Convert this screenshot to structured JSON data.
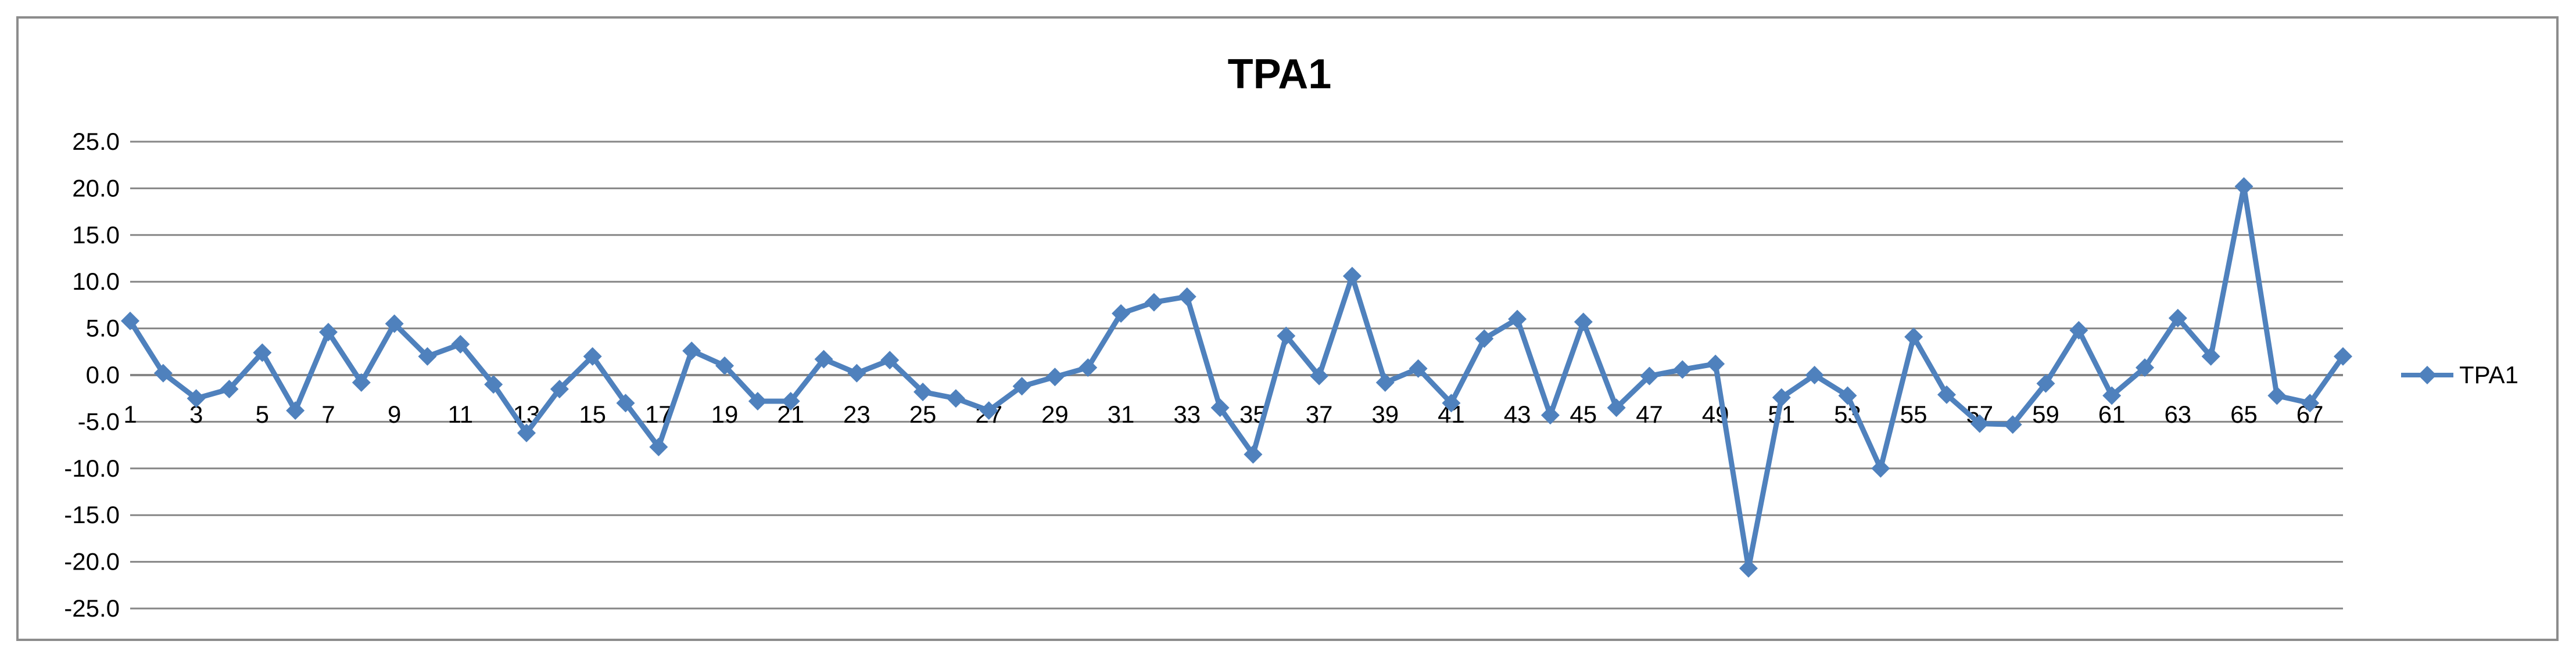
{
  "chart_data": {
    "type": "line",
    "title": "TPA1",
    "xlabel": "",
    "ylabel": "",
    "ylim": [
      -25,
      25
    ],
    "yticks": [
      "25.0",
      "20.0",
      "15.0",
      "10.0",
      "5.0",
      "0.0",
      "-5.0",
      "-10.0",
      "-15.0",
      "-20.0",
      "-25.0"
    ],
    "x": [
      1,
      2,
      3,
      4,
      5,
      6,
      7,
      8,
      9,
      10,
      11,
      12,
      13,
      14,
      15,
      16,
      17,
      18,
      19,
      20,
      21,
      22,
      23,
      24,
      25,
      26,
      27,
      28,
      29,
      30,
      31,
      32,
      33,
      34,
      35,
      36,
      37,
      38,
      39,
      40,
      41,
      42,
      43,
      44,
      45,
      46,
      47,
      48,
      49,
      50,
      51,
      52,
      53,
      54,
      55,
      56,
      57,
      58,
      59,
      60,
      61,
      62,
      63,
      64,
      65,
      66,
      67,
      68
    ],
    "xtick_labels": [
      "1",
      "3",
      "5",
      "7",
      "9",
      "11",
      "13",
      "15",
      "17",
      "19",
      "21",
      "23",
      "25",
      "27",
      "29",
      "31",
      "33",
      "35",
      "37",
      "39",
      "41",
      "43",
      "45",
      "47",
      "49",
      "51",
      "53",
      "55",
      "57",
      "59",
      "61",
      "63",
      "65",
      "67"
    ],
    "grid": true,
    "legend_position": "right",
    "series": [
      {
        "name": "TPA1",
        "color": "#4f81bd",
        "marker": "diamond",
        "values": [
          5.8,
          0.2,
          -2.5,
          -1.5,
          2.4,
          -3.8,
          4.6,
          -0.8,
          5.5,
          2.0,
          3.3,
          -1.0,
          -6.2,
          -1.5,
          2.0,
          -3.0,
          -7.7,
          2.6,
          1.0,
          -2.8,
          -2.8,
          1.7,
          0.2,
          1.6,
          -1.8,
          -2.5,
          -3.8,
          -1.2,
          -0.2,
          0.8,
          6.6,
          7.8,
          8.4,
          -3.5,
          -8.5,
          4.2,
          -0.1,
          10.6,
          -0.8,
          0.7,
          -3.0,
          3.9,
          6.0,
          -4.3,
          5.7,
          -3.5,
          -0.1,
          0.6,
          1.2,
          -20.7,
          -2.4,
          0.0,
          -2.2,
          -10.0,
          4.1,
          -2.1,
          -5.2,
          -5.3,
          -0.9,
          4.8,
          -2.2,
          0.8,
          6.1,
          2.0,
          20.2,
          -2.2,
          -3.0,
          2.0
        ]
      }
    ]
  }
}
